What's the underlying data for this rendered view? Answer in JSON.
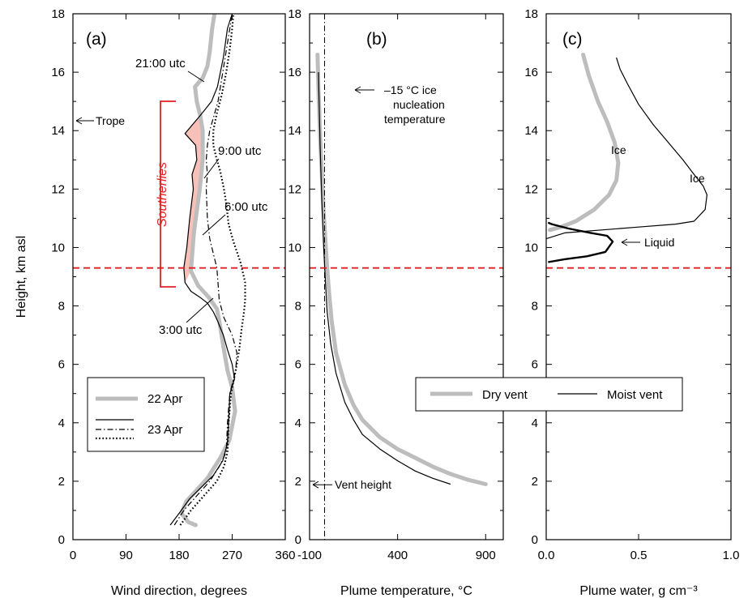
{
  "colors": {
    "dry_gray": "#bdbdbd",
    "tropopause_red": "#e02020",
    "southerly_fill": "#f6b6ae",
    "ink": "#000000"
  },
  "y_axis": {
    "label": "Height, km asl",
    "min": 0,
    "max": 18,
    "ticks": [
      0,
      2,
      4,
      6,
      8,
      10,
      12,
      14,
      16,
      18
    ]
  },
  "tropopause_km": 9.3,
  "chart_data": [
    {
      "type": "line",
      "panel_label": "(a)",
      "xlabel": "Wind direction, degrees",
      "xlim": [
        0,
        360
      ],
      "xticks": [
        0,
        90,
        180,
        270,
        360
      ],
      "ylim": [
        0,
        18
      ],
      "annotations": {
        "trope": "Trope",
        "southerlies": "Southerlies",
        "t21": "21:00 utc",
        "t9": "9:00 utc",
        "t6": "6:00 utc",
        "t3": "3:00 utc"
      },
      "legend": {
        "entry_22": "22 Apr",
        "entry_23": "23 Apr"
      },
      "series": [
        {
          "style": "gray-thick",
          "x": [
            208,
            196,
            184,
            192,
            210,
            228,
            250,
            265,
            275,
            270,
            262,
            256,
            252,
            248,
            244,
            230,
            212,
            200,
            205,
            215,
            220,
            220,
            216,
            210,
            207,
            220,
            228,
            232,
            236,
            240
          ],
          "y": [
            0.5,
            0.6,
            0.9,
            1.3,
            1.7,
            2.1,
            2.8,
            3.4,
            4.4,
            5.2,
            5.8,
            6.5,
            7.0,
            7.5,
            7.9,
            8.3,
            8.7,
            9.2,
            10.5,
            12.0,
            13.0,
            14.0,
            14.5,
            15.0,
            15.5,
            15.8,
            16.2,
            16.7,
            17.5,
            18.0
          ]
        },
        {
          "style": "black-solid",
          "x": [
            165,
            180,
            198,
            218,
            238,
            254,
            262,
            264,
            266,
            274,
            270,
            262,
            255,
            245,
            238,
            228,
            215,
            200,
            190,
            188,
            193,
            198,
            204,
            202,
            210,
            208,
            190,
            215,
            235,
            245,
            255,
            262,
            270
          ],
          "y": [
            0.5,
            0.9,
            1.4,
            1.8,
            2.2,
            2.7,
            3.3,
            4.0,
            5.0,
            5.5,
            6.0,
            6.5,
            7.0,
            7.5,
            7.8,
            8.1,
            8.3,
            8.5,
            8.8,
            9.3,
            10.0,
            11.0,
            12.0,
            12.5,
            13.0,
            13.5,
            13.9,
            14.5,
            15.0,
            15.5,
            16.5,
            17.5,
            18.0
          ]
        },
        {
          "style": "black-dashdot",
          "x": [
            172,
            188,
            210,
            232,
            248,
            260,
            262,
            266,
            276,
            278,
            270,
            256,
            248,
            246,
            244,
            238,
            232,
            228,
            226,
            228,
            226,
            228,
            232,
            246,
            254,
            262,
            270
          ],
          "y": [
            0.5,
            1.0,
            1.5,
            2.0,
            2.5,
            3.0,
            4.0,
            5.0,
            5.8,
            6.4,
            7.0,
            7.6,
            8.2,
            8.8,
            9.3,
            9.8,
            10.3,
            11.0,
            12.0,
            12.5,
            13.0,
            13.5,
            14.0,
            15.0,
            16.0,
            17.0,
            18.0
          ]
        },
        {
          "style": "black-dotted",
          "x": [
            182,
            200,
            222,
            244,
            256,
            262,
            264,
            268,
            276,
            282,
            286,
            290,
            292,
            292,
            284,
            272,
            264,
            260,
            256,
            250,
            244,
            238,
            238,
            244,
            252,
            260,
            266,
            270,
            272
          ],
          "y": [
            0.5,
            1.0,
            1.5,
            2.0,
            2.5,
            3.0,
            4.0,
            5.0,
            5.8,
            6.5,
            7.2,
            7.8,
            8.2,
            8.8,
            9.5,
            10.2,
            10.8,
            11.5,
            12.0,
            12.6,
            13.0,
            13.5,
            14.0,
            14.6,
            15.2,
            16.0,
            16.8,
            17.5,
            18.0
          ]
        }
      ]
    },
    {
      "type": "line",
      "panel_label": "(b)",
      "xlabel": "Plume temperature, °C",
      "xlim": [
        -100,
        1000
      ],
      "xticks": [
        -100,
        400,
        900
      ],
      "ylim": [
        0,
        18
      ],
      "ice_nucleation_temp_c": -15,
      "annotations": {
        "ice_line1": "–15 °C ice",
        "ice_line2": "nucleation",
        "ice_line3": "temperature",
        "vent_height": "Vent height",
        "vent_height_km": 1.88
      },
      "legend": {
        "dry": "Dry vent",
        "moist": "Moist vent"
      },
      "series": [
        {
          "name": "Dry vent",
          "style": "gray-thick",
          "x": [
            900,
            800,
            700,
            600,
            500,
            400,
            300,
            200,
            150,
            100,
            50,
            25,
            10,
            0,
            -10,
            -20,
            -30,
            -40,
            -50,
            -55
          ],
          "y": [
            1.9,
            2.05,
            2.25,
            2.5,
            2.8,
            3.1,
            3.5,
            4.1,
            4.6,
            5.3,
            6.4,
            7.5,
            8.5,
            9.3,
            10.2,
            11.2,
            12.5,
            13.8,
            15.5,
            16.6
          ]
        },
        {
          "name": "Moist vent",
          "style": "black-thin",
          "x": [
            700,
            600,
            500,
            400,
            300,
            200,
            150,
            100,
            50,
            20,
            0,
            -10,
            -20,
            -30,
            -40,
            -50
          ],
          "y": [
            1.9,
            2.1,
            2.35,
            2.7,
            3.1,
            3.6,
            4.1,
            4.7,
            5.7,
            6.7,
            7.8,
            8.8,
            10.0,
            11.5,
            13.5,
            16.0
          ]
        }
      ]
    },
    {
      "type": "line",
      "panel_label": "(c)",
      "xlabel": "Plume water, g cm⁻³",
      "xlim": [
        0,
        1.0
      ],
      "xticks": [
        0,
        0.5,
        1.0
      ],
      "xtick_labels": [
        "0.0",
        "0.5",
        "1.0"
      ],
      "ylim": [
        0,
        18
      ],
      "annotations": {
        "ice_dry": "Ice",
        "ice_moist": "Ice",
        "liquid": "Liquid"
      },
      "series": [
        {
          "name": "Ice (dry vent)",
          "style": "gray-thick",
          "x": [
            0.02,
            0.08,
            0.16,
            0.26,
            0.34,
            0.38,
            0.39,
            0.37,
            0.33,
            0.28,
            0.23,
            0.2
          ],
          "y": [
            10.6,
            10.7,
            10.9,
            11.3,
            11.8,
            12.3,
            12.9,
            13.6,
            14.3,
            15.0,
            15.9,
            16.6
          ]
        },
        {
          "name": "Ice (moist vent)",
          "style": "black-thin",
          "x": [
            0.0,
            0.1,
            0.3,
            0.5,
            0.7,
            0.8,
            0.86,
            0.87,
            0.85,
            0.8,
            0.74,
            0.66,
            0.58,
            0.5,
            0.44,
            0.4,
            0.38
          ],
          "y": [
            10.3,
            10.5,
            10.6,
            10.7,
            10.8,
            10.9,
            11.3,
            11.8,
            12.1,
            12.5,
            13.0,
            13.6,
            14.2,
            14.9,
            15.6,
            16.1,
            16.5
          ]
        },
        {
          "name": "Liquid",
          "style": "black-medium",
          "x": [
            0.01,
            0.1,
            0.22,
            0.32,
            0.36,
            0.33,
            0.24,
            0.12,
            0.03,
            0.01
          ],
          "y": [
            9.5,
            9.6,
            9.7,
            9.85,
            10.2,
            10.4,
            10.5,
            10.65,
            10.8,
            10.85
          ]
        }
      ]
    }
  ]
}
